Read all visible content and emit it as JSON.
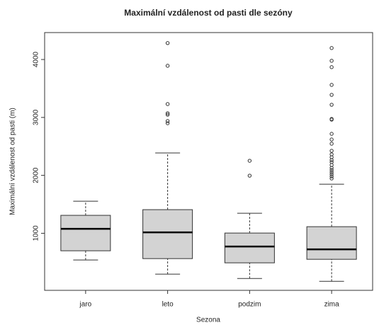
{
  "chart_data": {
    "type": "box",
    "title": "Maximální vzdálenost od pasti dle sezóny",
    "xlabel": "Sezona",
    "ylabel": "Maximální vzdálenost od pasti (m)",
    "categories": [
      "jaro",
      "leto",
      "podzim",
      "zima"
    ],
    "color": "#d3d3d3",
    "boxes": [
      {
        "whislo": 539,
        "q1": 698,
        "med": 1077,
        "q3": 1310,
        "whishi": 1554,
        "fliers": []
      },
      {
        "whislo": 294,
        "q1": 563,
        "med": 1016,
        "q3": 1408,
        "whishi": 2387,
        "fliers": [
          4284,
          3892,
          3231,
          3072,
          3048,
          2938,
          2900
        ]
      },
      {
        "whislo": 220,
        "q1": 490,
        "med": 771,
        "q3": 1004,
        "whishi": 1346,
        "fliers": [
          2252,
          1995
        ]
      },
      {
        "whislo": 171,
        "q1": 551,
        "med": 722,
        "q3": 1114,
        "whishi": 1848,
        "fliers": [
          4198,
          3978,
          3868,
          3562,
          3390,
          3219,
          2974,
          2962,
          2717,
          2619,
          2546,
          2424,
          2362,
          2313,
          2264,
          2228,
          2179,
          2130,
          2093,
          2056,
          2020,
          1983,
          1946
        ]
      }
    ],
    "ylim": [
      15,
      4465
    ],
    "yticks": [
      1000,
      2000,
      3000,
      4000
    ]
  }
}
